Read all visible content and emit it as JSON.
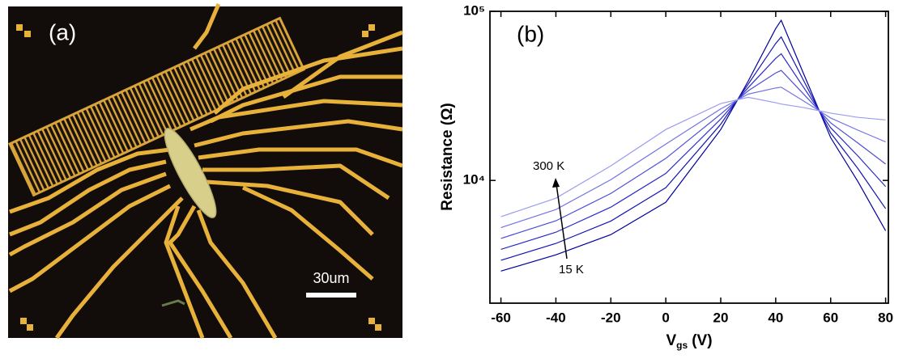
{
  "panel_a": {
    "label": "(a)",
    "scale_bar": "30um"
  },
  "chart_data": {
    "type": "line",
    "panel_label": "(b)",
    "x_label_parts": [
      "V",
      "gs",
      "(V)"
    ],
    "y_label": "Resistance (Ω)",
    "x": [
      -60,
      -40,
      -20,
      0,
      20,
      30,
      40,
      42,
      50,
      60,
      70,
      80
    ],
    "series": [
      {
        "color": "#00009a",
        "values": [
          2910,
          3630,
          4780,
          7430,
          20000,
          38700,
          79100,
          88500,
          43300,
          17900,
          9790,
          5040
        ]
      },
      {
        "color": "#1414b4",
        "values": [
          3370,
          4240,
          5750,
          9060,
          21500,
          37100,
          64600,
          70500,
          39400,
          19100,
          11700,
          6810
        ]
      },
      {
        "color": "#2a2ac8",
        "values": [
          3910,
          4940,
          6950,
          11000,
          23100,
          35400,
          52700,
          56100,
          35800,
          20500,
          13900,
          9200
        ]
      },
      {
        "color": "#4d4dd8",
        "values": [
          4540,
          5770,
          8380,
          13500,
          24700,
          33900,
          43200,
          44700,
          32600,
          21900,
          16600,
          12500
        ]
      },
      {
        "color": "#7373e4",
        "values": [
          5260,
          6730,
          10100,
          16400,
          26500,
          32400,
          35200,
          35600,
          29600,
          23400,
          19800,
          16900
        ]
      },
      {
        "color": "#9c9cf0",
        "values": [
          6100,
          7850,
          12200,
          20000,
          28500,
          31000,
          28800,
          28300,
          27000,
          25000,
          23600,
          22800
        ]
      }
    ],
    "xlim": [
      -64,
      81
    ],
    "xticks": [
      -60,
      -40,
      -20,
      0,
      20,
      40,
      60,
      80
    ],
    "ylim": [
      1880,
      100000
    ],
    "log_y": true,
    "yticks": [
      {
        "value": 10000,
        "label": "10⁴"
      },
      {
        "value": 100000,
        "label": "10⁵"
      }
    ],
    "annotations": [
      "300 K",
      "15 K"
    ]
  }
}
